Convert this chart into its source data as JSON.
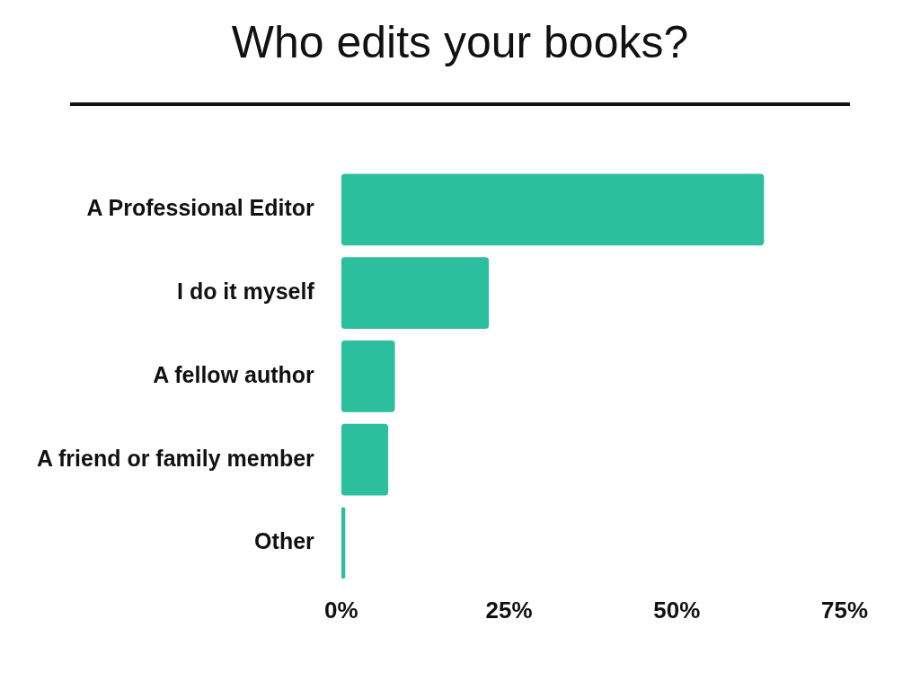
{
  "chart_data": {
    "type": "bar",
    "orientation": "horizontal",
    "title": "Who edits your books?",
    "categories": [
      "A Professional Editor",
      "I do it myself",
      "A fellow author",
      "A friend or family member",
      "Other"
    ],
    "values": [
      63,
      22,
      8,
      7,
      0.6
    ],
    "color": "#2bbf9e",
    "xlim": [
      0,
      75
    ],
    "xticks": [
      {
        "value": 0,
        "label": "0%"
      },
      {
        "value": 25,
        "label": "25%"
      },
      {
        "value": 50,
        "label": "50%"
      },
      {
        "value": 75,
        "label": "75%"
      }
    ],
    "grid": false,
    "legend": false
  }
}
